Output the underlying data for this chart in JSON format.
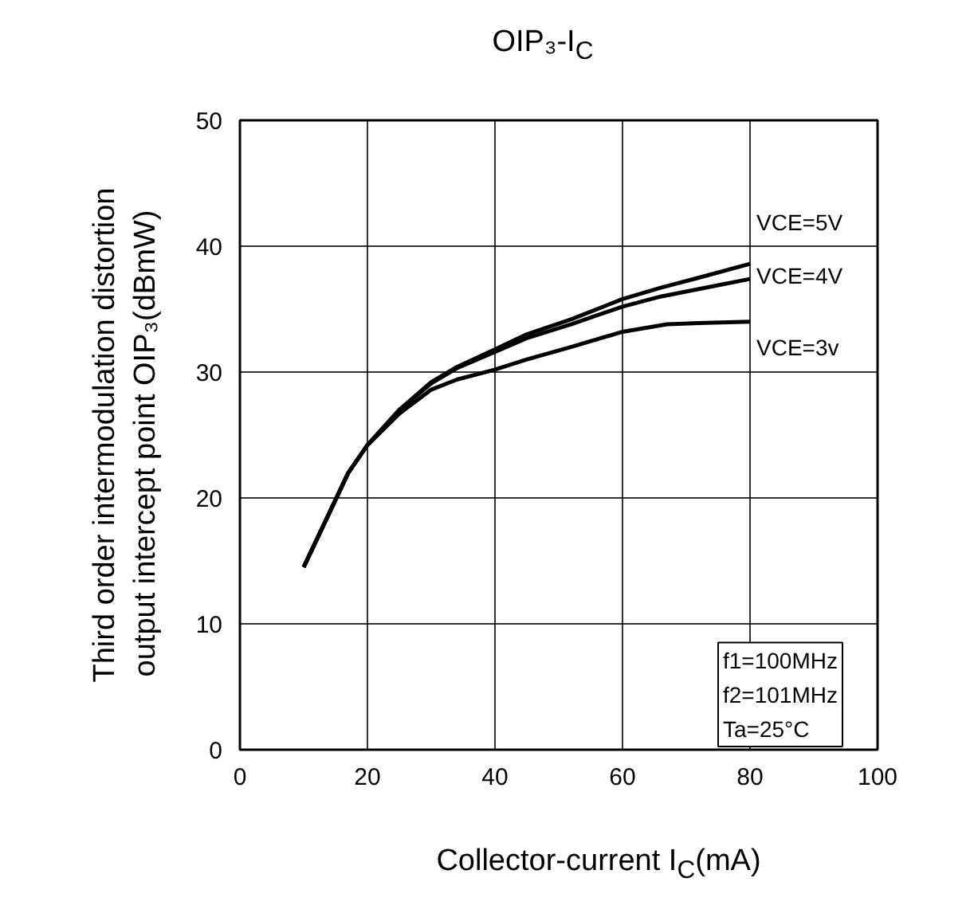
{
  "chart_data": {
    "type": "line",
    "title": "OIP₃-I$_{C}$",
    "xlabel": "Collector-current I$_{C}$(mA)",
    "ylabel": "Third order intermodulation distortion\noutput intercept point   OIP₃(dBmW)",
    "xlim": [
      0,
      100
    ],
    "ylim": [
      0,
      50
    ],
    "xticks": [
      0,
      20,
      40,
      60,
      80,
      100
    ],
    "yticks": [
      0,
      10,
      20,
      30,
      40,
      50
    ],
    "grid": true,
    "marker": "none",
    "line_style": "solid",
    "annotations": [
      "f1=100MHz",
      "f2=101MHz",
      "Ta=25°C"
    ],
    "series": [
      {
        "name": "VCE=5V",
        "color": "#000000",
        "x": [
          10,
          17,
          20,
          25,
          30,
          34,
          40,
          45,
          52,
          60,
          66,
          72,
          80
        ],
        "values": [
          14.5,
          22.0,
          24.2,
          27.0,
          29.2,
          30.4,
          31.8,
          33.0,
          34.2,
          35.8,
          36.7,
          37.5,
          38.6
        ]
      },
      {
        "name": "VCE=4V",
        "color": "#000000",
        "x": [
          10,
          17,
          20,
          25,
          30,
          34,
          40,
          45,
          52,
          60,
          66,
          72,
          80
        ],
        "values": [
          14.5,
          22.0,
          24.2,
          27.0,
          29.1,
          30.3,
          31.6,
          32.7,
          33.8,
          35.2,
          36.0,
          36.6,
          37.4
        ]
      },
      {
        "name": "VCE=3v",
        "color": "#000000",
        "x": [
          10,
          17,
          20,
          25,
          30,
          34,
          40,
          45,
          52,
          60,
          67,
          72,
          80
        ],
        "values": [
          14.5,
          22.0,
          24.2,
          26.7,
          28.6,
          29.4,
          30.2,
          31.0,
          32.0,
          33.2,
          33.8,
          33.9,
          34.0
        ]
      }
    ]
  }
}
